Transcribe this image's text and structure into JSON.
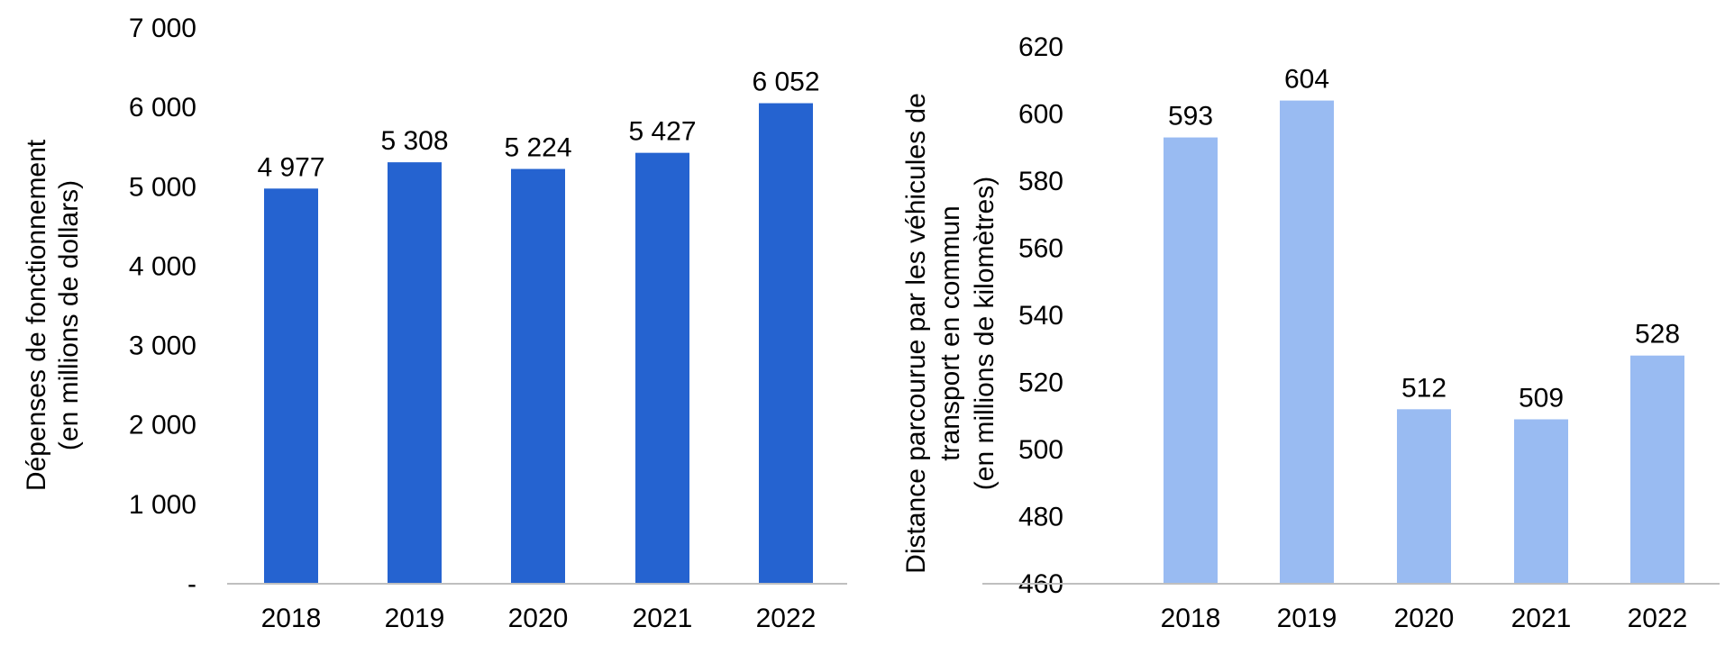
{
  "chart_data": [
    {
      "type": "bar",
      "categories": [
        "2018",
        "2019",
        "2020",
        "2021",
        "2022"
      ],
      "values": [
        4977,
        5308,
        5224,
        5427,
        6052
      ],
      "value_labels": [
        "4 977",
        "5 308",
        "5 224",
        "5 427",
        "6 052"
      ],
      "ylabel_lines": [
        "Dépenses de fonctionnement",
        "(en millions de dollars)"
      ],
      "ylim": [
        0,
        7000
      ],
      "yticks": [
        0,
        1000,
        2000,
        3000,
        4000,
        5000,
        6000,
        7000
      ],
      "ytick_labels": [
        "-",
        "1 000",
        "2 000",
        "3 000",
        "4 000",
        "5 000",
        "6 000",
        "7 000"
      ],
      "bar_color": "#2563D0",
      "grid": false
    },
    {
      "type": "bar",
      "categories": [
        "2018",
        "2019",
        "2020",
        "2021",
        "2022"
      ],
      "values": [
        593,
        604,
        512,
        509,
        528
      ],
      "value_labels": [
        "593",
        "604",
        "512",
        "509",
        "528"
      ],
      "ylabel_lines": [
        "Distance parcourue par les véhicules de",
        "transport en commun",
        "(en millions de kilomètres)"
      ],
      "ylim": [
        460,
        620
      ],
      "yticks": [
        460,
        480,
        500,
        520,
        540,
        560,
        580,
        600,
        620
      ],
      "ytick_labels": [
        "460",
        "480",
        "500",
        "520",
        "540",
        "560",
        "580",
        "600",
        "620"
      ],
      "bar_color": "#99BBF2",
      "grid": false
    }
  ]
}
